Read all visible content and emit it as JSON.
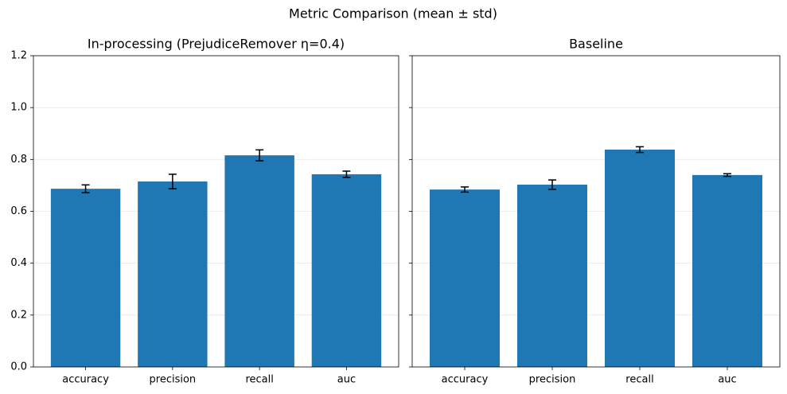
{
  "title": "Metric Comparison (mean ± std)",
  "chart_data": [
    {
      "type": "bar",
      "title": "In-processing (PrejudiceRemover η=0.4)",
      "categories": [
        "accuracy",
        "precision",
        "recall",
        "auc"
      ],
      "series": [
        {
          "color": "#1f77b4",
          "values": [
            0.687,
            0.715,
            0.816,
            0.743
          ],
          "errors": [
            0.015,
            0.028,
            0.021,
            0.012
          ]
        }
      ],
      "ylim": [
        0,
        1.2
      ],
      "yticks": [
        {
          "value": 0,
          "label": "0.0"
        },
        0.2,
        0.4,
        0.6,
        0.8,
        {
          "value": 1,
          "label": "1.0"
        },
        1.2
      ],
      "grid": true
    },
    {
      "type": "bar",
      "title": "Baseline",
      "categories": [
        "accuracy",
        "precision",
        "recall",
        "auc"
      ],
      "series": [
        {
          "color": "#1f77b4",
          "values": [
            0.684,
            0.703,
            0.838,
            0.74
          ],
          "errors": [
            0.01,
            0.018,
            0.011,
            0.005
          ]
        }
      ],
      "sharey": true,
      "grid": true
    }
  ]
}
